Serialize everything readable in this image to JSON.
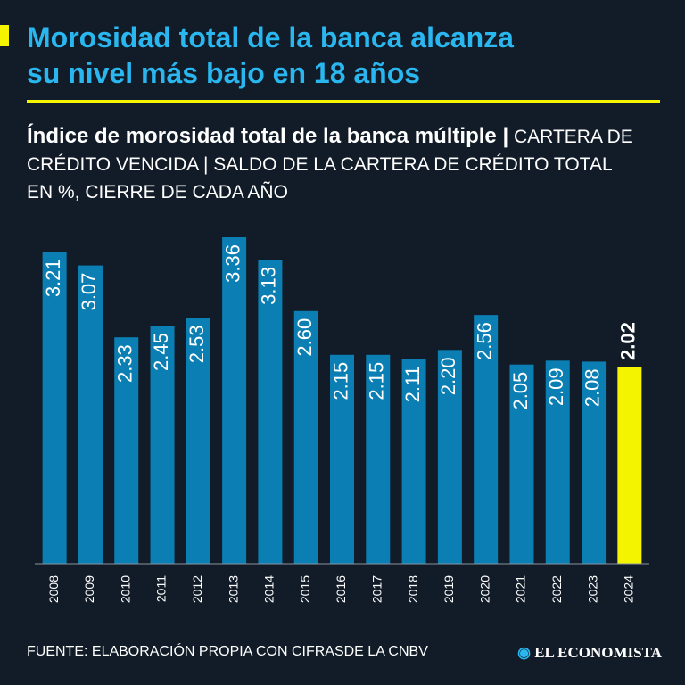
{
  "chart_data": {
    "type": "bar",
    "title": [
      "Morosidad total de la banca alcanza",
      "su nivel más bajo en 18 años"
    ],
    "subtitle_bold": "Índice de morosidad total de la banca múltiple |",
    "subtitle": "CARTERA DE CRÉDITO VENCIDA | SALDO DE LA CARTERA DE CRÉDITO TOTAL EN %, CIERRE DE CADA AÑO",
    "categories": [
      "2008",
      "2009",
      "2010",
      "2011",
      "2012",
      "2013",
      "2014",
      "2015",
      "2016",
      "2017",
      "2018",
      "2019",
      "2020",
      "2021",
      "2022",
      "2023",
      "2024"
    ],
    "values": [
      3.21,
      3.07,
      2.33,
      2.45,
      2.53,
      3.36,
      3.13,
      2.6,
      2.15,
      2.15,
      2.11,
      2.2,
      2.56,
      2.05,
      2.09,
      2.08,
      2.02
    ],
    "value_labels": [
      "3.21",
      "3.07",
      "2.33",
      "2.45",
      "2.53",
      "3.36",
      "3.13",
      "2.60",
      "2.15",
      "2.15",
      "2.11",
      "2.20",
      "2.56",
      "2.05",
      "2.09",
      "2.08",
      "2.02"
    ],
    "colors": [
      "#0b7fb3",
      "#0b7fb3",
      "#0b7fb3",
      "#0b7fb3",
      "#0b7fb3",
      "#0b7fb3",
      "#0b7fb3",
      "#0b7fb3",
      "#0b7fb3",
      "#0b7fb3",
      "#0b7fb3",
      "#0b7fb3",
      "#0b7fb3",
      "#0b7fb3",
      "#0b7fb3",
      "#0b7fb3",
      "#f4f400"
    ],
    "source": "FUENTE: ELABORACIÓN PROPIA CON CIFRASDE LA CNBV",
    "logo": "EL ECONOMISTA"
  }
}
